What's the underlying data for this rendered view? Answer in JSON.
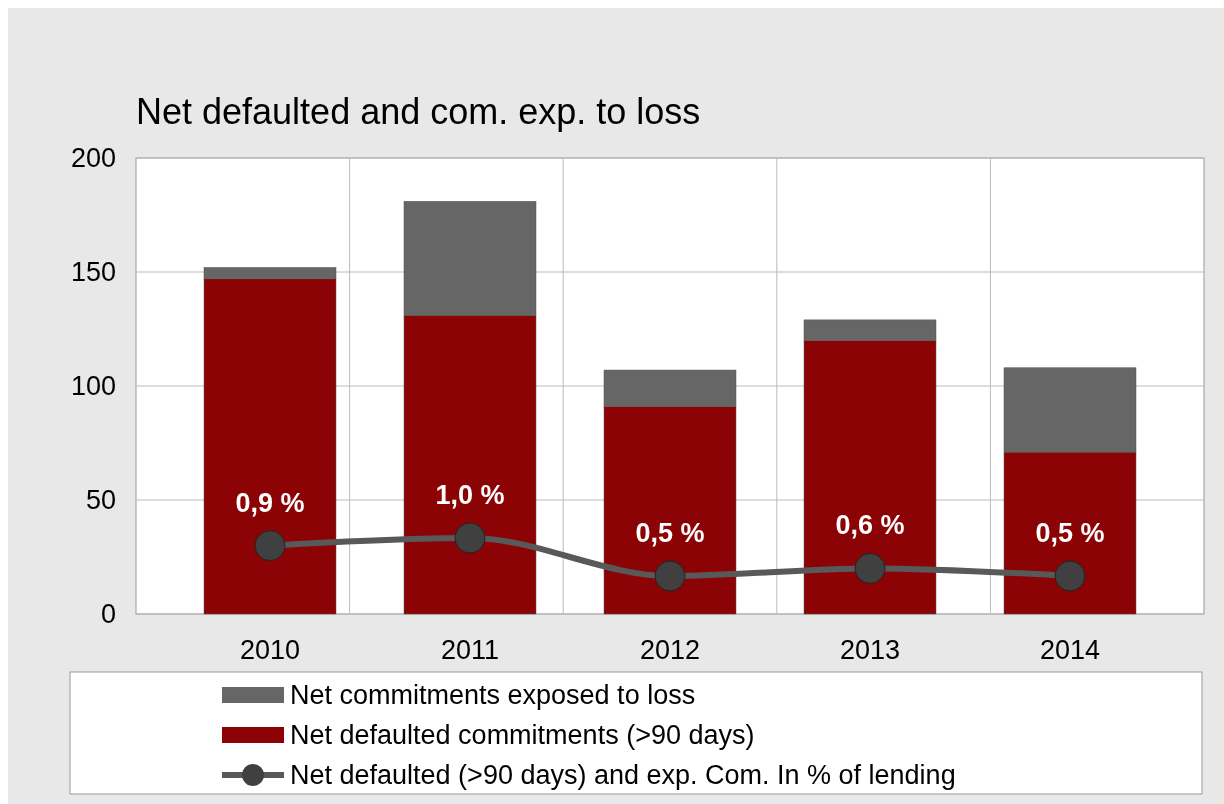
{
  "chart_data": {
    "type": "bar",
    "title": "Net defaulted and com. exp. to loss",
    "categories": [
      "2010",
      "2011",
      "2012",
      "2013",
      "2014"
    ],
    "stacked": true,
    "series": [
      {
        "name": "Net defaulted commitments (>90 days)",
        "color": "#8b0304",
        "values": [
          147,
          131,
          91,
          120,
          71
        ]
      },
      {
        "name": "Net commitments exposed to loss",
        "color": "#666666",
        "values": [
          5,
          50,
          16,
          9,
          37
        ]
      },
      {
        "name": "Net defaulted (>90 days) and exp. Com. In % of lending",
        "type": "line",
        "axis": "y2",
        "color": "#595959",
        "values": [
          0.9,
          1.0,
          0.5,
          0.6,
          0.5
        ],
        "value_labels": [
          "0,9 %",
          "1,0 %",
          "0,5 %",
          "0,6 %",
          "0,5 %"
        ]
      }
    ],
    "ylim": [
      0,
      200
    ],
    "yticks": [
      0,
      50,
      100,
      150,
      200
    ],
    "y2lim": [
      0,
      6
    ],
    "tick_labels": "xy",
    "grid": true,
    "legend": "bottom",
    "marker": "circle"
  }
}
